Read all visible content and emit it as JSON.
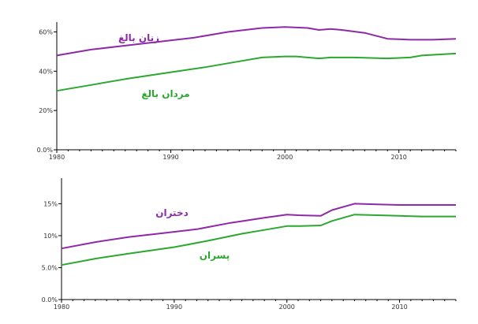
{
  "chart_data": [
    {
      "type": "line",
      "title": "",
      "xlabel": "",
      "ylabel": "",
      "xlim": [
        1980,
        2015
      ],
      "ylim": [
        0,
        0.65
      ],
      "x_ticks": [
        1980,
        1990,
        2000,
        2010
      ],
      "x_tick_labels": [
        "1980",
        "1990",
        "2000",
        "2010"
      ],
      "y_ticks": [
        0,
        0.2,
        0.4,
        0.6
      ],
      "y_tick_labels": [
        "0.0%",
        "20%",
        "40%",
        "60%"
      ],
      "grid": false,
      "legend": "inline labels",
      "series": [
        {
          "name": "زنان بالغ",
          "color": "#8e2aa8",
          "x": [
            1980,
            1983,
            1986,
            1989,
            1992,
            1995,
            1998,
            2000,
            2002,
            2003,
            2004,
            2005,
            2007,
            2009,
            2011,
            2013,
            2015
          ],
          "y": [
            0.48,
            0.51,
            0.53,
            0.55,
            0.57,
            0.6,
            0.62,
            0.625,
            0.62,
            0.61,
            0.615,
            0.61,
            0.595,
            0.565,
            0.56,
            0.56,
            0.565
          ]
        },
        {
          "name": "مردان بالغ",
          "color": "#2aa830",
          "x": [
            1980,
            1983,
            1986,
            1990,
            1993,
            1996,
            1998,
            2000,
            2001,
            2003,
            2004,
            2006,
            2009,
            2011,
            2012,
            2015
          ],
          "y": [
            0.3,
            0.33,
            0.36,
            0.395,
            0.42,
            0.45,
            0.47,
            0.475,
            0.475,
            0.465,
            0.47,
            0.47,
            0.465,
            0.47,
            0.48,
            0.49
          ]
        }
      ]
    },
    {
      "type": "line",
      "title": "",
      "xlabel": "",
      "ylabel": "",
      "xlim": [
        1980,
        2015
      ],
      "ylim": [
        0,
        0.19
      ],
      "x_ticks": [
        1980,
        1990,
        2000,
        2010
      ],
      "x_tick_labels": [
        "1980",
        "1990",
        "2000",
        "2010"
      ],
      "y_ticks": [
        0,
        0.05,
        0.1,
        0.15
      ],
      "y_tick_labels": [
        "0.0%",
        "5.0%",
        "10%",
        "15%"
      ],
      "grid": false,
      "legend": "inline labels",
      "series": [
        {
          "name": "دختران",
          "color": "#8e2aa8",
          "x": [
            1980,
            1983,
            1986,
            1989,
            1992,
            1995,
            1998,
            2000,
            2001,
            2003,
            2004,
            2006,
            2008,
            2010,
            2012,
            2015
          ],
          "y": [
            0.08,
            0.09,
            0.098,
            0.104,
            0.11,
            0.12,
            0.128,
            0.133,
            0.132,
            0.131,
            0.14,
            0.15,
            0.149,
            0.148,
            0.148,
            0.148
          ],
          "label_pos": [
            1991,
            0.135
          ]
        },
        {
          "name": "پسران",
          "color": "#2aa830",
          "x": [
            1980,
            1983,
            1986,
            1990,
            1993,
            1996,
            1998,
            2000,
            2001,
            2003,
            2004,
            2006,
            2008,
            2010,
            2012,
            2015
          ],
          "y": [
            0.054,
            0.064,
            0.072,
            0.082,
            0.092,
            0.103,
            0.109,
            0.115,
            0.115,
            0.116,
            0.123,
            0.133,
            0.132,
            0.131,
            0.13,
            0.13
          ]
        }
      ]
    }
  ]
}
